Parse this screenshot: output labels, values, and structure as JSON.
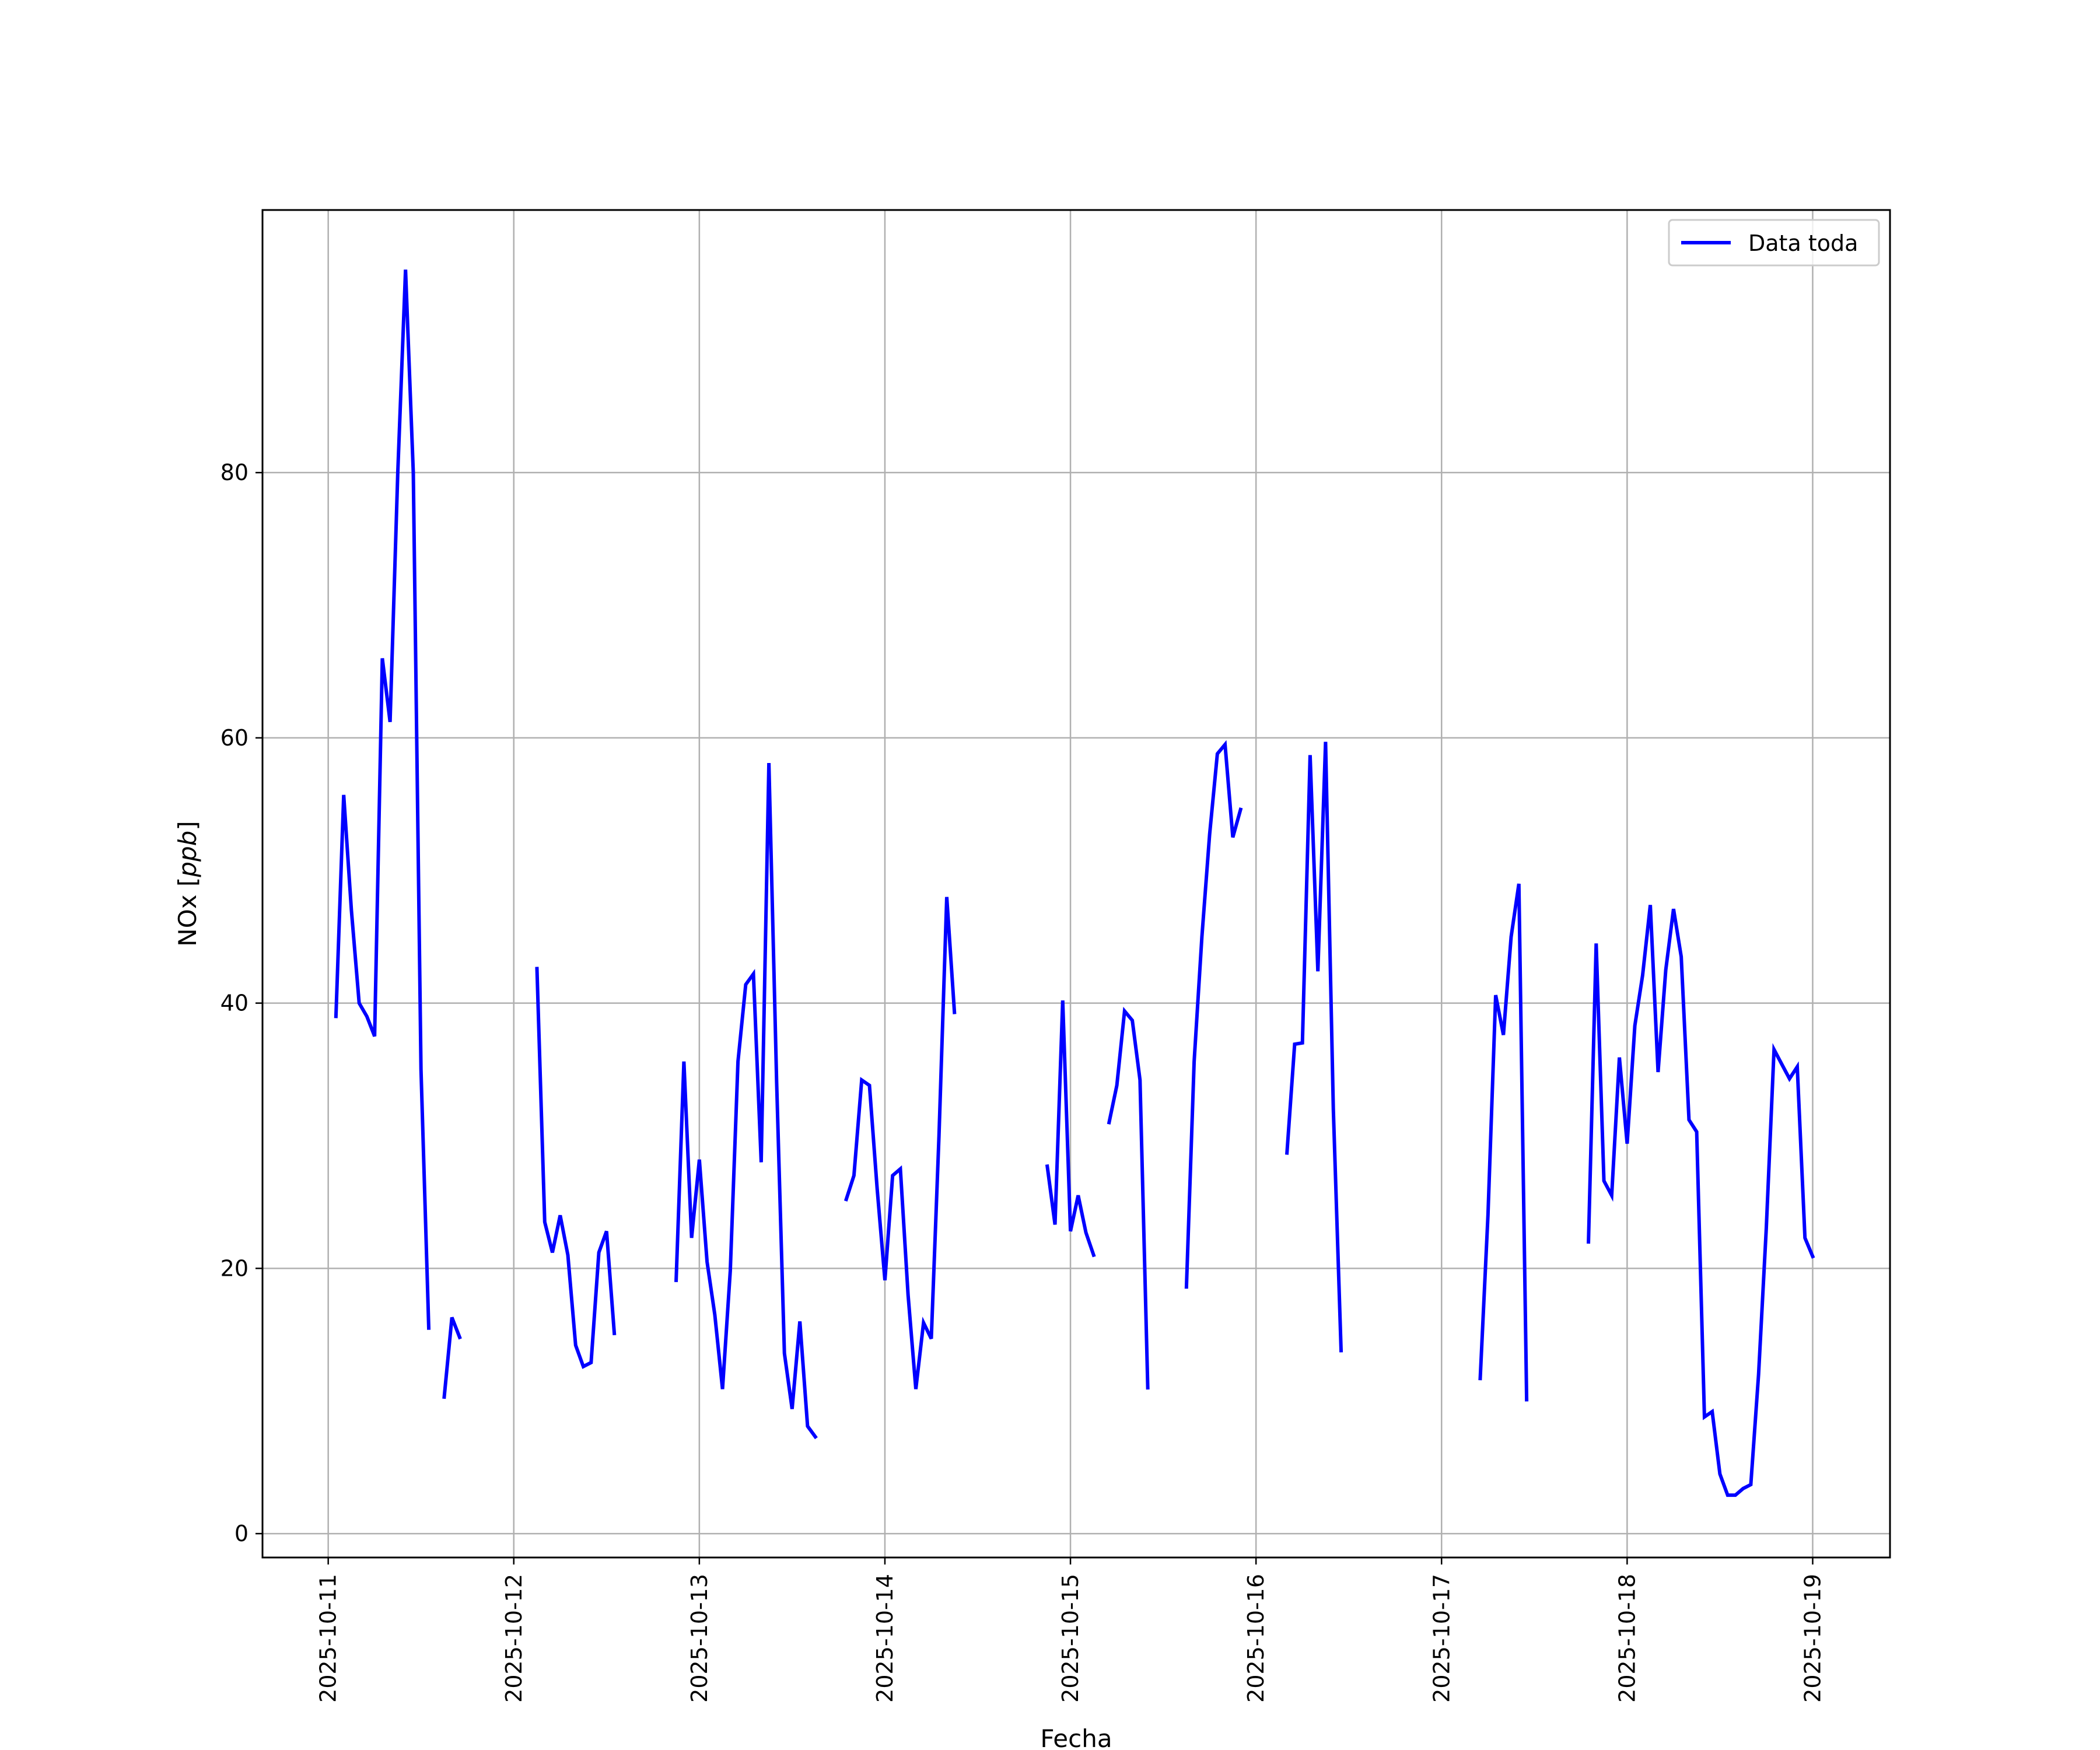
{
  "chart_data": {
    "type": "line",
    "xlabel": "Fecha",
    "ylabel": "NOx [ppb]",
    "xlim": [
      "2025-10-10 15:30",
      "2025-10-19 10:00"
    ],
    "ylim": [
      -1.8,
      99.8
    ],
    "xticks": [
      "2025-10-11",
      "2025-10-12",
      "2025-10-13",
      "2025-10-14",
      "2025-10-15",
      "2025-10-16",
      "2025-10-17",
      "2025-10-18",
      "2025-10-19"
    ],
    "yticks": [
      0,
      20,
      40,
      60,
      80
    ],
    "grid": true,
    "legend": {
      "location": "upper right",
      "entries": [
        "Data toda"
      ]
    },
    "colors": {
      "series": "#0000ff",
      "grid": "#b0b0b0",
      "axes": "#000000"
    },
    "series": [
      {
        "name": "Data toda",
        "segments": [
          [
            [
              "2025-10-11 01:00",
              39.0
            ],
            [
              "2025-10-11 02:00",
              55.7
            ],
            [
              "2025-10-11 03:00",
              47.0
            ],
            [
              "2025-10-11 04:00",
              40.0
            ],
            [
              "2025-10-11 05:00",
              39.0
            ],
            [
              "2025-10-11 06:00",
              37.5
            ],
            [
              "2025-10-11 07:00",
              66.0
            ],
            [
              "2025-10-11 08:00",
              61.2
            ],
            [
              "2025-10-11 09:00",
              80.0
            ],
            [
              "2025-10-11 10:00",
              95.3
            ],
            [
              "2025-10-11 11:00",
              80.0
            ],
            [
              "2025-10-11 12:00",
              35.0
            ],
            [
              "2025-10-11 13:00",
              15.5
            ]
          ],
          [
            [
              "2025-10-11 15:00",
              10.3
            ],
            [
              "2025-10-11 16:00",
              16.3
            ],
            [
              "2025-10-11 17:00",
              14.8
            ]
          ],
          [
            [
              "2025-10-12 03:00",
              42.6
            ],
            [
              "2025-10-12 04:00",
              23.5
            ],
            [
              "2025-10-12 05:00",
              21.2
            ],
            [
              "2025-10-12 06:00",
              24.0
            ],
            [
              "2025-10-12 07:00",
              21.0
            ],
            [
              "2025-10-12 08:00",
              14.2
            ],
            [
              "2025-10-12 09:00",
              12.6
            ],
            [
              "2025-10-12 10:00",
              12.9
            ],
            [
              "2025-10-12 11:00",
              21.2
            ],
            [
              "2025-10-12 12:00",
              22.8
            ],
            [
              "2025-10-12 13:00",
              15.1
            ]
          ],
          [
            [
              "2025-10-12 21:00",
              19.1
            ],
            [
              "2025-10-12 22:00",
              35.6
            ],
            [
              "2025-10-12 23:00",
              22.3
            ],
            [
              "2025-10-13 00:00",
              28.2
            ],
            [
              "2025-10-13 01:00",
              20.5
            ],
            [
              "2025-10-13 02:00",
              16.5
            ],
            [
              "2025-10-13 03:00",
              10.9
            ],
            [
              "2025-10-13 04:00",
              19.8
            ],
            [
              "2025-10-13 05:00",
              35.6
            ],
            [
              "2025-10-13 06:00",
              41.4
            ],
            [
              "2025-10-13 07:00",
              42.2
            ],
            [
              "2025-10-13 08:00",
              28.0
            ],
            [
              "2025-10-13 09:00",
              58.1
            ],
            [
              "2025-10-13 10:00",
              34.0
            ],
            [
              "2025-10-13 11:00",
              13.6
            ],
            [
              "2025-10-13 12:00",
              9.4
            ],
            [
              "2025-10-13 13:00",
              16.0
            ],
            [
              "2025-10-13 14:00",
              8.1
            ],
            [
              "2025-10-13 15:00",
              7.3
            ]
          ],
          [
            [
              "2025-10-13 19:00",
              25.2
            ],
            [
              "2025-10-13 20:00",
              27.0
            ],
            [
              "2025-10-13 21:00",
              34.2
            ],
            [
              "2025-10-13 22:00",
              33.8
            ],
            [
              "2025-10-13 23:00",
              26.0
            ],
            [
              "2025-10-14 00:00",
              19.1
            ],
            [
              "2025-10-14 01:00",
              27.0
            ],
            [
              "2025-10-14 02:00",
              27.5
            ],
            [
              "2025-10-14 03:00",
              18.0
            ],
            [
              "2025-10-14 04:00",
              10.9
            ],
            [
              "2025-10-14 05:00",
              15.9
            ],
            [
              "2025-10-14 06:00",
              14.7
            ],
            [
              "2025-10-14 07:00",
              30.0
            ],
            [
              "2025-10-14 08:00",
              48.0
            ],
            [
              "2025-10-14 09:00",
              39.3
            ]
          ],
          [
            [
              "2025-10-14 21:00",
              27.7
            ],
            [
              "2025-10-14 22:00",
              23.3
            ],
            [
              "2025-10-14 23:00",
              40.2
            ],
            [
              "2025-10-15 00:00",
              22.8
            ],
            [
              "2025-10-15 01:00",
              25.5
            ],
            [
              "2025-10-15 02:00",
              22.7
            ],
            [
              "2025-10-15 03:00",
              21.0
            ]
          ],
          [
            [
              "2025-10-15 05:00",
              31.0
            ],
            [
              "2025-10-15 06:00",
              33.8
            ],
            [
              "2025-10-15 07:00",
              39.4
            ],
            [
              "2025-10-15 08:00",
              38.7
            ],
            [
              "2025-10-15 09:00",
              34.2
            ],
            [
              "2025-10-15 10:00",
              11.0
            ]
          ],
          [
            [
              "2025-10-15 15:00",
              18.6
            ],
            [
              "2025-10-15 16:00",
              35.6
            ],
            [
              "2025-10-15 17:00",
              45.0
            ],
            [
              "2025-10-15 18:00",
              52.7
            ],
            [
              "2025-10-15 19:00",
              58.8
            ],
            [
              "2025-10-15 20:00",
              59.5
            ],
            [
              "2025-10-15 21:00",
              52.5
            ],
            [
              "2025-10-15 22:00",
              54.6
            ]
          ],
          [
            [
              "2025-10-16 04:00",
              28.7
            ],
            [
              "2025-10-16 05:00",
              36.9
            ],
            [
              "2025-10-16 06:00",
              37.0
            ],
            [
              "2025-10-16 07:00",
              58.7
            ],
            [
              "2025-10-16 08:00",
              42.4
            ],
            [
              "2025-10-16 09:00",
              59.7
            ],
            [
              "2025-10-16 10:00",
              32.0
            ],
            [
              "2025-10-16 11:00",
              13.8
            ]
          ],
          [
            [
              "2025-10-17 05:00",
              11.7
            ],
            [
              "2025-10-17 06:00",
              24.0
            ],
            [
              "2025-10-17 07:00",
              40.6
            ],
            [
              "2025-10-17 08:00",
              37.6
            ],
            [
              "2025-10-17 09:00",
              45.0
            ],
            [
              "2025-10-17 10:00",
              49.0
            ],
            [
              "2025-10-17 11:00",
              10.1
            ]
          ],
          [
            [
              "2025-10-17 19:00",
              22.0
            ],
            [
              "2025-10-17 20:00",
              44.5
            ],
            [
              "2025-10-17 21:00",
              26.6
            ],
            [
              "2025-10-17 22:00",
              25.5
            ],
            [
              "2025-10-17 23:00",
              35.9
            ],
            [
              "2025-10-18 00:00",
              29.4
            ],
            [
              "2025-10-18 01:00",
              38.3
            ],
            [
              "2025-10-18 02:00",
              42.1
            ],
            [
              "2025-10-18 03:00",
              47.4
            ],
            [
              "2025-10-18 04:00",
              34.8
            ],
            [
              "2025-10-18 05:00",
              42.5
            ],
            [
              "2025-10-18 06:00",
              47.1
            ],
            [
              "2025-10-18 07:00",
              43.5
            ],
            [
              "2025-10-18 08:00",
              31.2
            ],
            [
              "2025-10-18 09:00",
              30.3
            ],
            [
              "2025-10-18 10:00",
              8.8
            ],
            [
              "2025-10-18 11:00",
              9.2
            ],
            [
              "2025-10-18 12:00",
              4.5
            ],
            [
              "2025-10-18 13:00",
              2.9
            ],
            [
              "2025-10-18 14:00",
              2.9
            ],
            [
              "2025-10-18 15:00",
              3.4
            ],
            [
              "2025-10-18 16:00",
              3.7
            ],
            [
              "2025-10-18 17:00",
              12.0
            ],
            [
              "2025-10-18 18:00",
              23.0
            ],
            [
              "2025-10-18 19:00",
              36.5
            ],
            [
              "2025-10-18 20:00",
              35.4
            ],
            [
              "2025-10-18 21:00",
              34.3
            ],
            [
              "2025-10-18 22:00",
              35.2
            ],
            [
              "2025-10-18 23:00",
              22.3
            ],
            [
              "2025-10-19 00:00",
              20.9
            ]
          ]
        ]
      }
    ]
  }
}
